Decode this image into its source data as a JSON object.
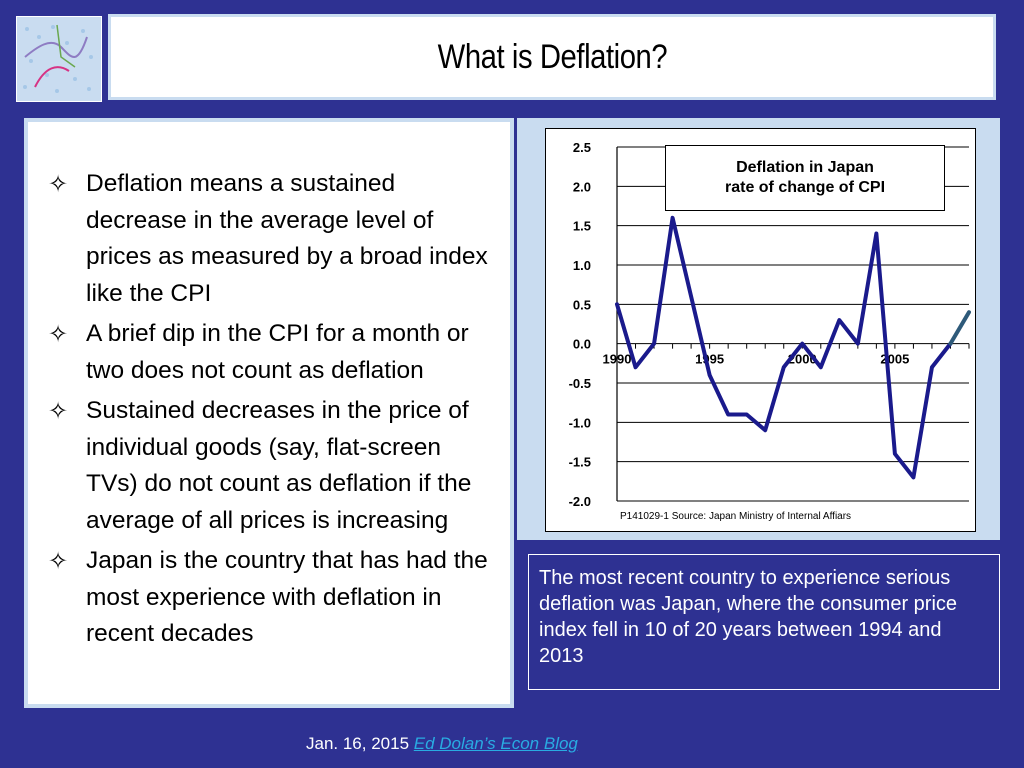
{
  "slide": {
    "title": "What is Deflation?",
    "bullets": [
      "Deflation means a sustained decrease in the average level of prices as measured by a broad index like the CPI",
      "A brief dip in the CPI for a month or two does not count as deflation",
      "Sustained decreases in the price of individual goods (say, flat-screen TVs) do not count as deflation if the average of all prices is increasing",
      "Japan is the country that has had the most experience with deflation in recent decades"
    ],
    "bullet_glyph": "✧",
    "caption": "The most recent country to experience serious deflation was Japan, where the consumer price index fell in 10 of 20 years between 1994 and 2013",
    "footer_date": "Jan. 16, 2015",
    "footer_link": "Ed Dolan’s Econ Blog",
    "colors": {
      "background": "#2e3192",
      "panel_border": "#c9dcf0",
      "line": "#1a1a8c",
      "line_tail": "#2e5a7a",
      "link": "#29abe2"
    }
  },
  "chart_data": {
    "type": "line",
    "title_line1": "Deflation in Japan",
    "title_line2": "rate of change of CPI",
    "source": "P141029-1 Source: Japan Ministry of Internal Affiars",
    "x": [
      1990,
      1991,
      1992,
      1993,
      1994,
      1995,
      1996,
      1997,
      1998,
      1999,
      2000,
      2001,
      2002,
      2003,
      2004,
      2005,
      2006,
      2007,
      2008,
      2009
    ],
    "values": [
      0.5,
      -0.3,
      0.0,
      1.6,
      0.6,
      -0.4,
      -0.9,
      -0.9,
      -1.1,
      -0.3,
      0.0,
      -0.3,
      0.3,
      0.0,
      1.4,
      -1.4,
      -1.7,
      -0.3,
      0.0,
      0.4
    ],
    "tail_from_index": 18,
    "xlim": [
      1990,
      2009
    ],
    "ylim": [
      -2.0,
      2.5
    ],
    "yticks": [
      "2.5",
      "2.0",
      "1.5",
      "1.0",
      "0.5",
      "0.0",
      "-0.5",
      "-1.0",
      "-1.5",
      "-2.0"
    ],
    "xtick_labels": [
      "1990",
      "1995",
      "2000",
      "2005"
    ],
    "grid": true
  }
}
